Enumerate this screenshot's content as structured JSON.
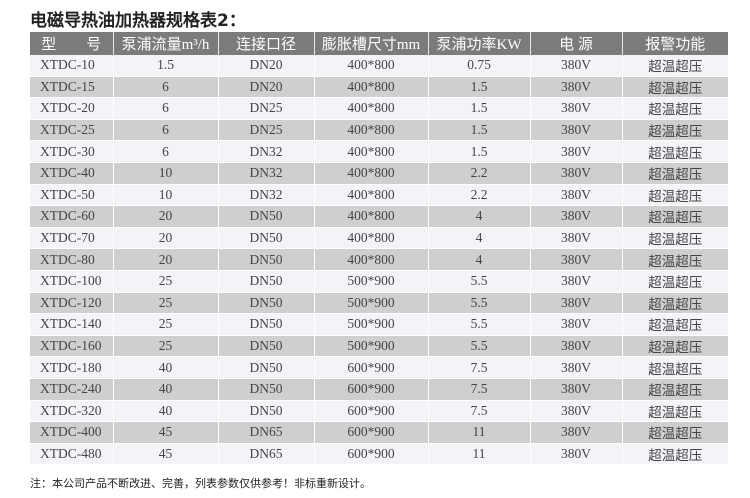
{
  "title": "电磁导热油加热器规格表2：",
  "headers": [
    "型　　号",
    "泵浦流量m³/h",
    "连接口径",
    "膨胀槽尺寸mm",
    "泵浦功率KW",
    "电 源",
    "报警功能"
  ],
  "rows": [
    [
      "XTDC-10",
      "1.5",
      "DN20",
      "400*800",
      "0.75",
      "380V",
      "超温超压"
    ],
    [
      "XTDC-15",
      "6",
      "DN20",
      "400*800",
      "1.5",
      "380V",
      "超温超压"
    ],
    [
      "XTDC-20",
      "6",
      "DN25",
      "400*800",
      "1.5",
      "380V",
      "超温超压"
    ],
    [
      "XTDC-25",
      "6",
      "DN25",
      "400*800",
      "1.5",
      "380V",
      "超温超压"
    ],
    [
      "XTDC-30",
      "6",
      "DN32",
      "400*800",
      "1.5",
      "380V",
      "超温超压"
    ],
    [
      "XTDC-40",
      "10",
      "DN32",
      "400*800",
      "2.2",
      "380V",
      "超温超压"
    ],
    [
      "XTDC-50",
      "10",
      "DN32",
      "400*800",
      "2.2",
      "380V",
      "超温超压"
    ],
    [
      "XTDC-60",
      "20",
      "DN50",
      "400*800",
      "4",
      "380V",
      "超温超压"
    ],
    [
      "XTDC-70",
      "20",
      "DN50",
      "400*800",
      "4",
      "380V",
      "超温超压"
    ],
    [
      "XTDC-80",
      "20",
      "DN50",
      "400*800",
      "4",
      "380V",
      "超温超压"
    ],
    [
      "XTDC-100",
      "25",
      "DN50",
      "500*900",
      "5.5",
      "380V",
      "超温超压"
    ],
    [
      "XTDC-120",
      "25",
      "DN50",
      "500*900",
      "5.5",
      "380V",
      "超温超压"
    ],
    [
      "XTDC-140",
      "25",
      "DN50",
      "500*900",
      "5.5",
      "380V",
      "超温超压"
    ],
    [
      "XTDC-160",
      "25",
      "DN50",
      "500*900",
      "5.5",
      "380V",
      "超温超压"
    ],
    [
      "XTDC-180",
      "40",
      "DN50",
      "600*900",
      "7.5",
      "380V",
      "超温超压"
    ],
    [
      "XTDC-240",
      "40",
      "DN50",
      "600*900",
      "7.5",
      "380V",
      "超温超压"
    ],
    [
      "XTDC-320",
      "40",
      "DN50",
      "600*900",
      "7.5",
      "380V",
      "超温超压"
    ],
    [
      "XTDC-400",
      "45",
      "DN65",
      "600*900",
      "11",
      "380V",
      "超温超压"
    ],
    [
      "XTDC-480",
      "45",
      "DN65",
      "600*900",
      "11",
      "380V",
      "超温超压"
    ]
  ],
  "note": "注：本公司产品不断改进、完善，列表参数仅供参考！非标重新设计。",
  "colors": {
    "header_bg": "#7b7b7b",
    "row_odd": "#f3f4f8",
    "row_even": "#cfcfcf"
  }
}
